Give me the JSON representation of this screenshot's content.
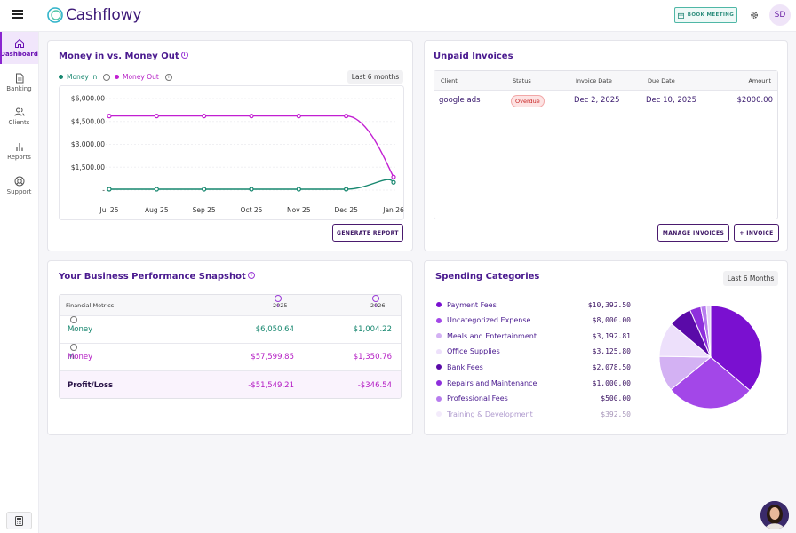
{
  "app": {
    "name": "Cashflowy",
    "book_label": "BOOK MEETING",
    "user_initials": "SD"
  },
  "sidebar": {
    "items": [
      {
        "label": "Dashboard",
        "icon": "home-icon",
        "active": true
      },
      {
        "label": "Banking",
        "icon": "document-icon"
      },
      {
        "label": "Clients",
        "icon": "users-icon"
      },
      {
        "label": "Reports",
        "icon": "bar-chart-icon"
      },
      {
        "label": "Support",
        "icon": "lifebuoy-icon"
      }
    ]
  },
  "money_chart": {
    "title": "Money in vs. Money Out",
    "legend_in": "Money In",
    "legend_out": "Money Out",
    "range_label": "Last 6 months",
    "button_label": "GENERATE REPORT",
    "colors": {
      "in": "#17876f",
      "out": "#c21fd2"
    }
  },
  "chart_data": {
    "type": "line",
    "x": [
      "Jul 25",
      "Aug 25",
      "Sep 25",
      "Oct 25",
      "Nov 25",
      "Dec 25",
      "Jan 26"
    ],
    "y_ticks": [
      "$6,000.00",
      "$4,500.00",
      "$3,000.00",
      "$1,500.00",
      "-"
    ],
    "ylim": [
      0,
      6000
    ],
    "series": [
      {
        "name": "Money Out",
        "values": [
          4800,
          4800,
          4800,
          4800,
          4800,
          4800,
          800
        ]
      },
      {
        "name": "Money In",
        "values": [
          0,
          0,
          0,
          0,
          0,
          0,
          450
        ]
      }
    ]
  },
  "invoices": {
    "title": "Unpaid Invoices",
    "columns": [
      "Client",
      "Status",
      "Invoice Date",
      "Due Date",
      "Amount"
    ],
    "rows": [
      {
        "client": "google ads",
        "status": "Overdue",
        "invoice_date": "Dec 2, 2025",
        "due_date": "Dec 10, 2025",
        "amount": "$2000.00"
      }
    ],
    "manage_label": "MANAGE INVOICES",
    "add_label": "+ INVOICE"
  },
  "performance": {
    "title": "Your Business Performance Snapshot",
    "header": [
      "Financial Metrics",
      "2025",
      "2026"
    ],
    "rows": [
      {
        "label": "Money In",
        "y2025": "$6,050.64",
        "y2026": "$1,004.22"
      },
      {
        "label": "Money Out",
        "y2025": "$57,599.85",
        "y2026": "$1,350.76"
      },
      {
        "label": "Profit/Loss",
        "y2025": "-$51,549.21",
        "y2026": "-$346.54"
      }
    ]
  },
  "spending": {
    "title": "Spending Categories",
    "range_label": "Last 6 Months",
    "items": [
      {
        "label": "Payment Fees",
        "amount": "$10,392.50",
        "value": 10392.5,
        "color": "#7a10d0"
      },
      {
        "label": "Uncategorized Expense",
        "amount": "$8,000.00",
        "value": 8000,
        "color": "#a347e8"
      },
      {
        "label": "Meals and Entertainment",
        "amount": "$3,192.81",
        "value": 3192.81,
        "color": "#d3b1f3"
      },
      {
        "label": "Office Supplies",
        "amount": "$3,125.80",
        "value": 3125.8,
        "color": "#ede0fb"
      },
      {
        "label": "Bank Fees",
        "amount": "$2,078.50",
        "value": 2078.5,
        "color": "#5a0aa8"
      },
      {
        "label": "Repairs and Maintenance",
        "amount": "$1,000.00",
        "value": 1000,
        "color": "#8e2fdc"
      },
      {
        "label": "Professional Fees",
        "amount": "$500.00",
        "value": 500,
        "color": "#b77cee"
      },
      {
        "label": "Training & Development",
        "amount": "$392.50",
        "value": 392.5,
        "color": "#e6d4f8"
      }
    ]
  }
}
